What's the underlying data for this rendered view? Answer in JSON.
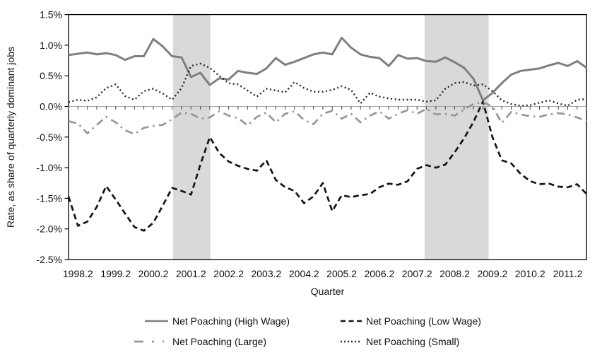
{
  "y_axis": {
    "title": "Rate, as share of quarterly dominant jobs",
    "tick_labels": [
      "1.5%",
      "1.0%",
      "0.5%",
      "0.0%",
      "-0.5%",
      "-1.0%",
      "-1.5%",
      "-2.0%",
      "-2.5%"
    ]
  },
  "x_axis": {
    "title": "Quarter",
    "tick_labels": [
      "1998.2",
      "1999.2",
      "2000.2",
      "2001.2",
      "2002.2",
      "2003.2",
      "2004.2",
      "2005.2",
      "2006.2",
      "2007.2",
      "2008.2",
      "2009.2",
      "2010.2",
      "2011.2"
    ]
  },
  "chart_data": {
    "type": "line",
    "xlabel": "Quarter",
    "ylabel": "Rate, as share of quarterly dominant jobs",
    "ylim": [
      -2.5,
      1.5
    ],
    "y_step": 0.5,
    "grid": false,
    "legend_position": "bottom",
    "band_color": "#d9d9d9",
    "bands": [
      {
        "from_quarter": "2000.4",
        "to_quarter": "2001.4",
        "from_index": 11.1,
        "to_index": 15.05
      },
      {
        "from_quarter": "2007.3",
        "to_quarter": "2009.1",
        "from_index": 37.8,
        "to_index": 44.6
      }
    ],
    "categories": [
      "1998.1",
      "1998.2",
      "1998.3",
      "1998.4",
      "1999.1",
      "1999.2",
      "1999.3",
      "1999.4",
      "2000.1",
      "2000.2",
      "2000.3",
      "2000.4",
      "2001.1",
      "2001.2",
      "2001.3",
      "2001.4",
      "2002.1",
      "2002.2",
      "2002.3",
      "2002.4",
      "2003.1",
      "2003.2",
      "2003.3",
      "2003.4",
      "2004.1",
      "2004.2",
      "2004.3",
      "2004.4",
      "2005.1",
      "2005.2",
      "2005.3",
      "2005.4",
      "2006.1",
      "2006.2",
      "2006.3",
      "2006.4",
      "2007.1",
      "2007.2",
      "2007.3",
      "2007.4",
      "2008.1",
      "2008.2",
      "2008.3",
      "2008.4",
      "2009.1",
      "2009.2",
      "2009.3",
      "2009.4",
      "2010.1",
      "2010.2",
      "2010.3",
      "2010.4",
      "2011.1",
      "2011.2",
      "2011.3",
      "2011.4"
    ],
    "series": [
      {
        "name": "Net Poaching (High Wage)",
        "line_style": "solid",
        "color": "#7f7f7f",
        "values": [
          0.84,
          0.86,
          0.88,
          0.85,
          0.87,
          0.84,
          0.76,
          0.82,
          0.82,
          1.1,
          0.98,
          0.82,
          0.8,
          0.48,
          0.55,
          0.35,
          0.46,
          0.44,
          0.58,
          0.55,
          0.53,
          0.62,
          0.79,
          0.68,
          0.73,
          0.79,
          0.85,
          0.88,
          0.85,
          1.12,
          0.96,
          0.85,
          0.81,
          0.79,
          0.66,
          0.84,
          0.78,
          0.79,
          0.74,
          0.73,
          0.8,
          0.72,
          0.63,
          0.45,
          0.1,
          0.22,
          0.38,
          0.52,
          0.58,
          0.6,
          0.62,
          0.67,
          0.71,
          0.66,
          0.74,
          0.63
        ]
      },
      {
        "name": "Net Poaching (Low Wage)",
        "line_style": "dashed",
        "color": "#141414",
        "values": [
          -1.47,
          -1.95,
          -1.88,
          -1.64,
          -1.3,
          -1.52,
          -1.75,
          -1.97,
          -2.03,
          -1.9,
          -1.62,
          -1.33,
          -1.38,
          -1.44,
          -0.95,
          -0.5,
          -0.76,
          -0.9,
          -0.97,
          -1.02,
          -1.05,
          -0.88,
          -1.2,
          -1.32,
          -1.38,
          -1.58,
          -1.47,
          -1.25,
          -1.71,
          -1.45,
          -1.48,
          -1.45,
          -1.43,
          -1.32,
          -1.26,
          -1.28,
          -1.22,
          -1.02,
          -0.96,
          -1.0,
          -0.95,
          -0.75,
          -0.52,
          -0.25,
          0.08,
          -0.5,
          -0.88,
          -0.93,
          -1.1,
          -1.22,
          -1.27,
          -1.26,
          -1.31,
          -1.32,
          -1.27,
          -1.43
        ]
      },
      {
        "name": "Net Poaching (Large)",
        "line_style": "dash-dot",
        "color": "#969696",
        "values": [
          -0.24,
          -0.28,
          -0.44,
          -0.3,
          -0.17,
          -0.26,
          -0.39,
          -0.45,
          -0.35,
          -0.32,
          -0.3,
          -0.21,
          -0.1,
          -0.12,
          -0.2,
          -0.18,
          -0.08,
          -0.15,
          -0.19,
          -0.31,
          -0.17,
          -0.1,
          -0.26,
          -0.12,
          -0.08,
          -0.22,
          -0.29,
          -0.12,
          -0.07,
          -0.2,
          -0.12,
          -0.26,
          -0.15,
          -0.08,
          -0.2,
          -0.12,
          -0.06,
          -0.12,
          -0.04,
          -0.13,
          -0.12,
          -0.15,
          -0.05,
          0.04,
          0.07,
          0.0,
          -0.27,
          -0.09,
          -0.13,
          -0.16,
          -0.17,
          -0.13,
          -0.11,
          -0.13,
          -0.18,
          -0.24
        ]
      },
      {
        "name": "Net Poaching (Small)",
        "line_style": "dotted",
        "color": "#262626",
        "values": [
          0.07,
          0.11,
          0.09,
          0.15,
          0.3,
          0.36,
          0.17,
          0.11,
          0.25,
          0.29,
          0.21,
          0.11,
          0.3,
          0.66,
          0.7,
          0.63,
          0.5,
          0.38,
          0.36,
          0.26,
          0.16,
          0.29,
          0.26,
          0.23,
          0.4,
          0.3,
          0.24,
          0.24,
          0.27,
          0.33,
          0.27,
          0.05,
          0.22,
          0.16,
          0.13,
          0.11,
          0.11,
          0.11,
          0.08,
          0.1,
          0.29,
          0.38,
          0.4,
          0.34,
          0.36,
          0.25,
          0.1,
          0.04,
          0.01,
          0.02,
          0.06,
          0.1,
          0.05,
          0.01,
          0.11,
          0.12
        ]
      }
    ]
  }
}
